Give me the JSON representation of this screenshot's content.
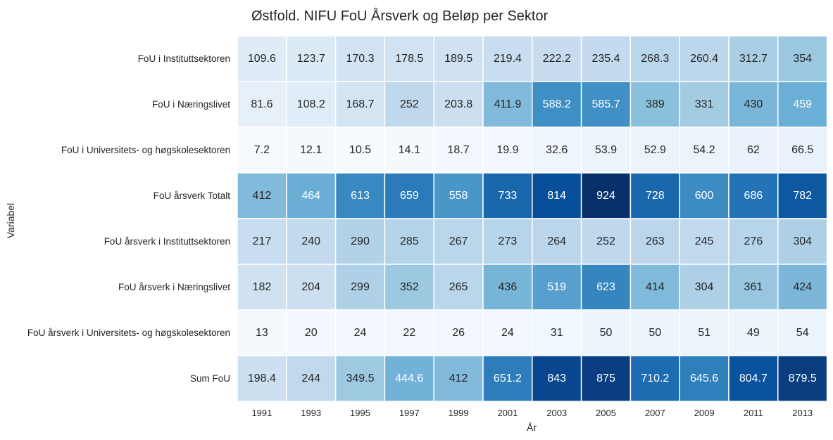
{
  "chart_data": {
    "type": "heatmap",
    "title": "Østfold. NIFU FoU Årsverk og Beløp per Sektor",
    "xlabel": "År",
    "ylabel": "Variabel",
    "colormap": "Blues",
    "value_range": [
      0,
      924
    ],
    "x": [
      "1991",
      "1993",
      "1995",
      "1997",
      "1999",
      "2001",
      "2003",
      "2005",
      "2007",
      "2009",
      "2011",
      "2013"
    ],
    "y": [
      "FoU i Instituttsektoren",
      "FoU i Næringslivet",
      "FoU i Universitets- og høgskolesektoren",
      "FoU årsverk Totalt",
      "FoU årsverk i Instituttsektoren",
      "FoU årsverk i Næringslivet",
      "FoU årsverk i Universitets- og høgskolesektoren",
      "Sum FoU"
    ],
    "values": [
      [
        "109.6",
        "123.7",
        "170.3",
        "178.5",
        "189.5",
        "219.4",
        "222.2",
        "235.4",
        "268.3",
        "260.4",
        "312.7",
        "354"
      ],
      [
        "81.6",
        "108.2",
        "168.7",
        "252",
        "203.8",
        "411.9",
        "588.2",
        "585.7",
        "389",
        "331",
        "430",
        "459"
      ],
      [
        "7.2",
        "12.1",
        "10.5",
        "14.1",
        "18.7",
        "19.9",
        "32.6",
        "53.9",
        "52.9",
        "54.2",
        "62",
        "66.5"
      ],
      [
        "412",
        "464",
        "613",
        "659",
        "558",
        "733",
        "814",
        "924",
        "728",
        "600",
        "686",
        "782"
      ],
      [
        "217",
        "240",
        "290",
        "285",
        "267",
        "273",
        "264",
        "252",
        "263",
        "245",
        "276",
        "304"
      ],
      [
        "182",
        "204",
        "299",
        "352",
        "265",
        "436",
        "519",
        "623",
        "414",
        "304",
        "361",
        "424"
      ],
      [
        "13",
        "20",
        "24",
        "22",
        "26",
        "24",
        "31",
        "50",
        "50",
        "51",
        "49",
        "54"
      ],
      [
        "198.4",
        "244",
        "349.5",
        "444.6",
        "412",
        "651.2",
        "843",
        "875",
        "710.2",
        "645.6",
        "804.7",
        "879.5"
      ]
    ]
  }
}
